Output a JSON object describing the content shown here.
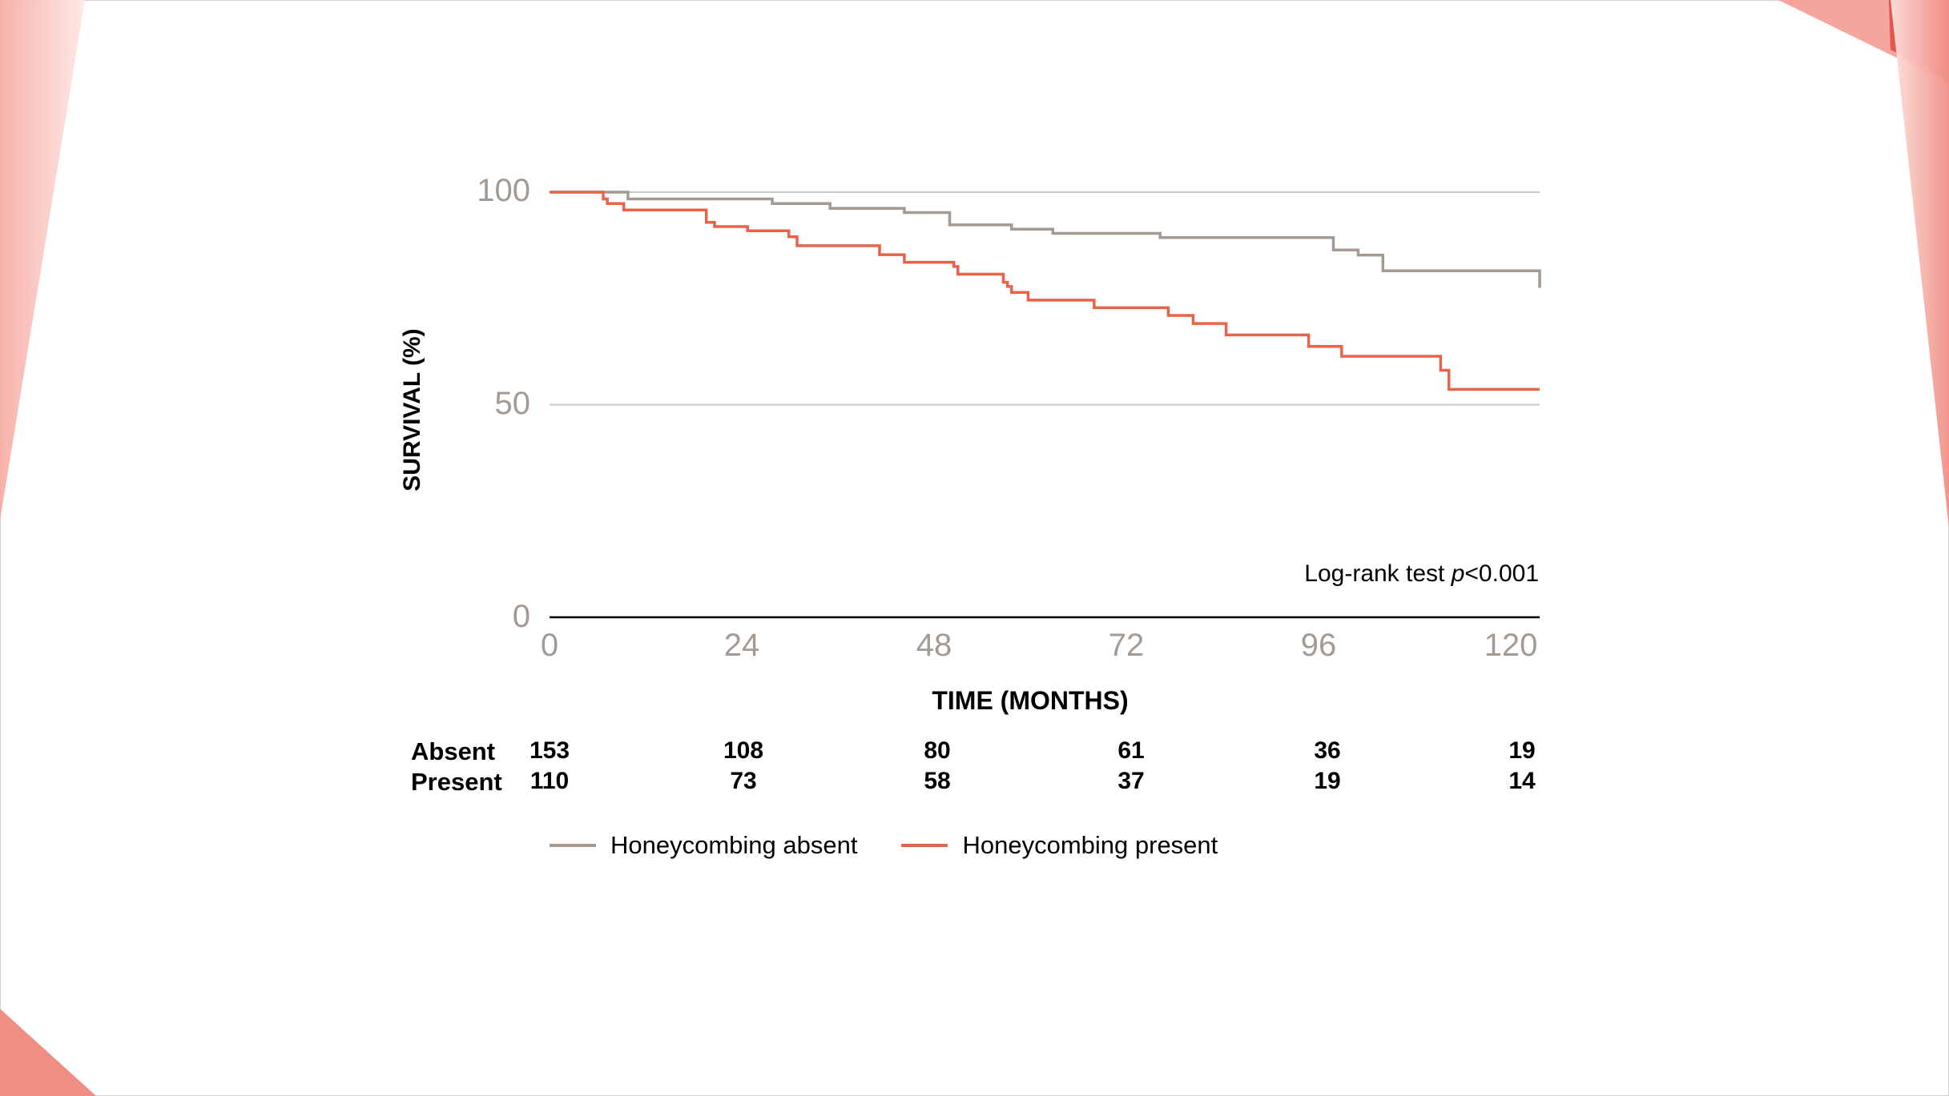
{
  "chart_data": {
    "type": "line",
    "title": "",
    "xlabel": "TIME (MONTHS)",
    "ylabel": "SURVIVAL (%)",
    "xlim": [
      0,
      120
    ],
    "ylim": [
      0,
      100
    ],
    "x_ticks": [
      "0",
      "24",
      "48",
      "72",
      "96",
      "120"
    ],
    "y_ticks": [
      "100",
      "50",
      "0"
    ],
    "grid": "horizontal",
    "annotation": {
      "prefix": "Log-rank test ",
      "italic": "p",
      "suffix": "<0.001"
    },
    "legend_position": "bottom-left",
    "series": [
      {
        "name": "Honeycombing absent",
        "color": "#a39a93",
        "x": [
          0,
          9,
          9.5,
          26,
          27,
          33,
          34,
          40,
          43,
          48,
          48.5,
          56,
          61,
          74,
          95,
          98,
          101,
          120,
          120
        ],
        "y": [
          100,
          100,
          98.4,
          98.4,
          97.3,
          97.3,
          96.2,
          96.2,
          95.2,
          95.2,
          92.3,
          91.3,
          90.3,
          89.3,
          86.4,
          85.2,
          81.5,
          81.5,
          77.5
        ]
      },
      {
        "name": "Honeycombing present",
        "color": "#e8634a",
        "x": [
          0,
          5,
          6.5,
          7,
          9,
          17,
          19,
          20,
          24,
          29,
          30,
          40,
          43,
          49,
          49.5,
          55,
          55.5,
          56,
          58,
          66,
          75,
          78,
          82,
          92,
          96,
          108,
          109,
          120
        ],
        "y": [
          100,
          100,
          98.4,
          97.3,
          95.8,
          95.8,
          92.9,
          91.9,
          90.9,
          89.5,
          87.4,
          85.3,
          83.5,
          82.5,
          80.7,
          78.8,
          77.8,
          76.4,
          74.6,
          72.8,
          71,
          69.1,
          66.4,
          63.7,
          61.4,
          58.1,
          53.6,
          53.6
        ]
      }
    ],
    "risk_table": {
      "times": [
        0,
        24,
        48,
        72,
        96,
        120
      ],
      "rows": [
        {
          "label": "Absent",
          "values": [
            "153",
            "108",
            "80",
            "61",
            "36",
            "19"
          ]
        },
        {
          "label": "Present",
          "values": [
            "110",
            "73",
            "58",
            "37",
            "19",
            "14"
          ]
        }
      ]
    }
  },
  "decorations": {
    "accent_light": "#f8c4bd",
    "accent_mid": "#f2938a",
    "accent_dark": "#e0554d"
  }
}
